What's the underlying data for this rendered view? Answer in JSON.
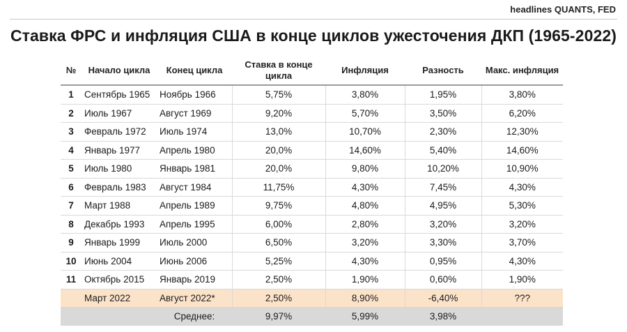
{
  "source": "headlines QUANTS, FED",
  "title": "Ставка ФРС и инфляция США в конце циклов ужесточения ДКП (1965-2022)",
  "columns": [
    "№",
    "Начало цикла",
    "Конец цикла",
    "Ставка в конце цикла",
    "Инфляция",
    "Разность",
    "Макс. инфляция"
  ],
  "rows": [
    {
      "n": "1",
      "start": "Сентябрь 1965",
      "end": "Ноябрь 1966",
      "rate": "5,75%",
      "inflation": "3,80%",
      "diff": "1,95%",
      "max": "3,80%"
    },
    {
      "n": "2",
      "start": "Июль 1967",
      "end": "Август 1969",
      "rate": "9,20%",
      "inflation": "5,70%",
      "diff": "3,50%",
      "max": "6,20%"
    },
    {
      "n": "3",
      "start": "Февраль 1972",
      "end": "Июль 1974",
      "rate": "13,0%",
      "inflation": "10,70%",
      "diff": "2,30%",
      "max": "12,30%"
    },
    {
      "n": "4",
      "start": "Январь 1977",
      "end": "Апрель 1980",
      "rate": "20,0%",
      "inflation": "14,60%",
      "diff": "5,40%",
      "max": "14,60%"
    },
    {
      "n": "5",
      "start": "Июль 1980",
      "end": "Январь 1981",
      "rate": "20,0%",
      "inflation": "9,80%",
      "diff": "10,20%",
      "max": "10,90%"
    },
    {
      "n": "6",
      "start": "Февраль 1983",
      "end": "Август 1984",
      "rate": "11,75%",
      "inflation": "4,30%",
      "diff": "7,45%",
      "max": "4,30%"
    },
    {
      "n": "7",
      "start": "Март 1988",
      "end": "Апрель 1989",
      "rate": "9,75%",
      "inflation": "4,80%",
      "diff": "4,95%",
      "max": "5,30%"
    },
    {
      "n": "8",
      "start": "Декабрь 1993",
      "end": "Апрель 1995",
      "rate": "6,00%",
      "inflation": "2,80%",
      "diff": "3,20%",
      "max": "3,20%"
    },
    {
      "n": "9",
      "start": "Январь 1999",
      "end": "Июль 2000",
      "rate": "6,50%",
      "inflation": "3,20%",
      "diff": "3,30%",
      "max": "3,70%"
    },
    {
      "n": "10",
      "start": "Июнь 2004",
      "end": "Июнь 2006",
      "rate": "5,25%",
      "inflation": "4,30%",
      "diff": "0,95%",
      "max": "4,30%"
    },
    {
      "n": "11",
      "start": "Октябрь 2015",
      "end": "Январь 2019",
      "rate": "2,50%",
      "inflation": "1,90%",
      "diff": "0,60%",
      "max": "1,90%"
    }
  ],
  "current": {
    "start": "Март 2022",
    "end": "Август 2022*",
    "rate": "2,50%",
    "inflation": "8,90%",
    "diff": "-6,40%",
    "max": "???"
  },
  "average": {
    "label": "Среднее:",
    "rate": "9,97%",
    "inflation": "5,99%",
    "diff": "3,98%"
  },
  "colors": {
    "current_row": "#fbe3c9",
    "average_row": "#d9d9d9",
    "grid": "#d9d9d9"
  }
}
